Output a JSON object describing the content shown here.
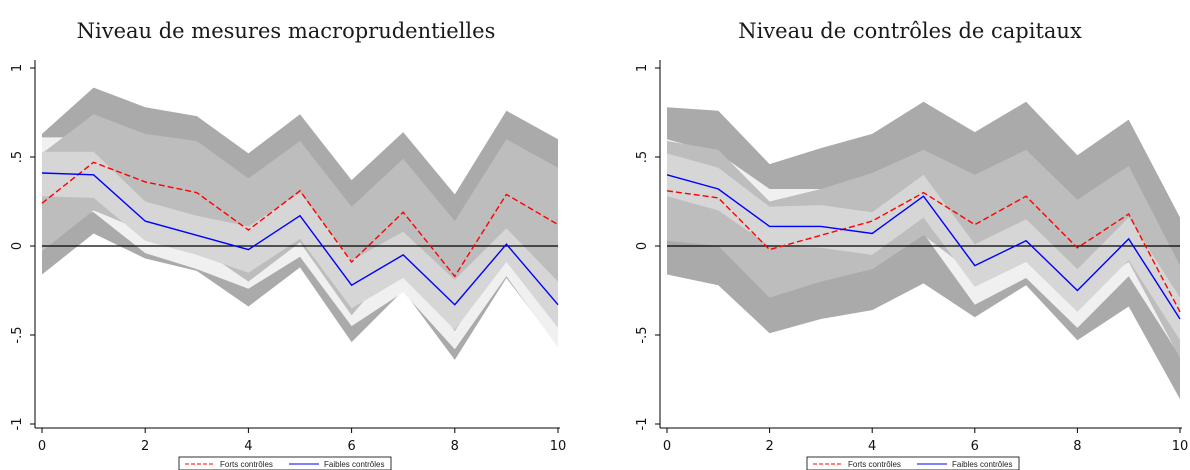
{
  "chart_data": [
    {
      "type": "line",
      "title": "Niveau de mesures macroprudentielles",
      "xlabel": "",
      "ylabel": "",
      "xlim": [
        0,
        10
      ],
      "ylim": [
        -1.05,
        1.05
      ],
      "x_ticks": [
        0,
        2,
        4,
        6,
        8,
        10
      ],
      "y_ticks": [
        -1,
        -0.5,
        0,
        0.5,
        1
      ],
      "y_tick_labels": [
        "-1",
        "-.5",
        "0",
        ".5",
        "1"
      ],
      "grid": false,
      "reference_line": 0,
      "legend_position": "bottom-center",
      "x": [
        0,
        1,
        2,
        3,
        4,
        5,
        6,
        7,
        8,
        9,
        10
      ],
      "series": [
        {
          "name": "Forts contrôles",
          "style": "dashed",
          "color": "#ff0000",
          "values": [
            0.24,
            0.47,
            0.36,
            0.3,
            0.09,
            0.31,
            -0.09,
            0.19,
            -0.17,
            0.29,
            0.12
          ],
          "band_outer": {
            "lower": [
              -0.16,
              0.07,
              -0.07,
              -0.14,
              -0.34,
              -0.12,
              -0.54,
              -0.25,
              -0.64,
              -0.18,
              -0.56
            ],
            "upper": [
              0.63,
              0.89,
              0.78,
              0.73,
              0.52,
              0.74,
              0.37,
              0.64,
              0.29,
              0.76,
              0.6
            ]
          },
          "band_inner": {
            "lower": [
              -0.03,
              0.2,
              0.08,
              0.0,
              -0.2,
              0.02,
              -0.39,
              -0.05,
              -0.48,
              -0.02,
              -0.39
            ],
            "upper": [
              0.52,
              0.74,
              0.63,
              0.59,
              0.38,
              0.59,
              0.22,
              0.49,
              0.14,
              0.6,
              0.44
            ]
          }
        },
        {
          "name": "Faibles contrôles",
          "style": "solid",
          "color": "#0000ff",
          "values": [
            0.41,
            0.4,
            0.14,
            0.06,
            -0.02,
            0.17,
            -0.22,
            -0.05,
            -0.33,
            0.01,
            -0.33
          ],
          "band_outer": {
            "lower": [
              0.2,
              0.19,
              -0.04,
              -0.13,
              -0.24,
              -0.06,
              -0.45,
              -0.26,
              -0.58,
              -0.17,
              -0.57
            ],
            "upper": [
              0.61,
              0.61,
              0.33,
              0.25,
              0.19,
              0.39,
              0.02,
              0.16,
              -0.09,
              0.24,
              -0.1
            ]
          },
          "band_inner": {
            "lower": [
              0.28,
              0.27,
              0.03,
              -0.05,
              -0.15,
              0.04,
              -0.35,
              -0.18,
              -0.47,
              -0.09,
              -0.46
            ],
            "upper": [
              0.53,
              0.53,
              0.25,
              0.17,
              0.11,
              0.3,
              -0.08,
              0.08,
              -0.19,
              0.1,
              -0.2
            ]
          }
        }
      ]
    },
    {
      "type": "line",
      "title": "Niveau de contrôles de capitaux",
      "xlabel": "",
      "ylabel": "",
      "xlim": [
        0,
        10
      ],
      "ylim": [
        -1.05,
        1.05
      ],
      "x_ticks": [
        0,
        2,
        4,
        6,
        8,
        10
      ],
      "y_ticks": [
        -1,
        -0.5,
        0,
        0.5,
        1
      ],
      "y_tick_labels": [
        "-1",
        "-.5",
        "0",
        ".5",
        "1"
      ],
      "grid": false,
      "reference_line": 0,
      "legend_position": "bottom-center",
      "x": [
        0,
        1,
        2,
        3,
        4,
        5,
        6,
        7,
        8,
        9,
        10
      ],
      "series": [
        {
          "name": "Forts contrôles",
          "style": "dashed",
          "color": "#ff0000",
          "values": [
            0.31,
            0.27,
            -0.02,
            0.06,
            0.14,
            0.3,
            0.12,
            0.28,
            -0.01,
            0.18,
            -0.37
          ],
          "band_outer": {
            "lower": [
              -0.16,
              -0.22,
              -0.49,
              -0.41,
              -0.36,
              -0.21,
              -0.4,
              -0.22,
              -0.53,
              -0.34,
              -0.86
            ],
            "upper": [
              0.78,
              0.76,
              0.46,
              0.55,
              0.63,
              0.81,
              0.64,
              0.81,
              0.51,
              0.71,
              0.16
            ]
          },
          "band_inner": {
            "lower": [
              0.03,
              0.0,
              -0.29,
              -0.2,
              -0.13,
              0.06,
              -0.16,
              0.02,
              -0.28,
              -0.09,
              -0.63
            ],
            "upper": [
              0.59,
              0.54,
              0.25,
              0.32,
              0.41,
              0.54,
              0.4,
              0.54,
              0.26,
              0.45,
              -0.11
            ]
          }
        },
        {
          "name": "Faibles contrôles",
          "style": "solid",
          "color": "#0000ff",
          "values": [
            0.4,
            0.32,
            0.11,
            0.11,
            0.07,
            0.28,
            -0.11,
            0.03,
            -0.25,
            0.04,
            -0.41
          ],
          "band_outer": {
            "lower": [
              0.2,
              0.12,
              -0.1,
              -0.1,
              -0.13,
              0.07,
              -0.33,
              -0.18,
              -0.46,
              -0.17,
              -0.62
            ],
            "upper": [
              0.6,
              0.52,
              0.32,
              0.32,
              0.27,
              0.49,
              0.11,
              0.24,
              -0.04,
              0.25,
              -0.2
            ]
          },
          "band_inner": {
            "lower": [
              0.28,
              0.2,
              0.0,
              -0.01,
              -0.05,
              0.16,
              -0.23,
              -0.09,
              -0.37,
              -0.08,
              -0.53
            ],
            "upper": [
              0.52,
              0.44,
              0.22,
              0.23,
              0.19,
              0.4,
              0.01,
              0.15,
              -0.13,
              0.16,
              -0.29
            ]
          }
        }
      ]
    }
  ]
}
